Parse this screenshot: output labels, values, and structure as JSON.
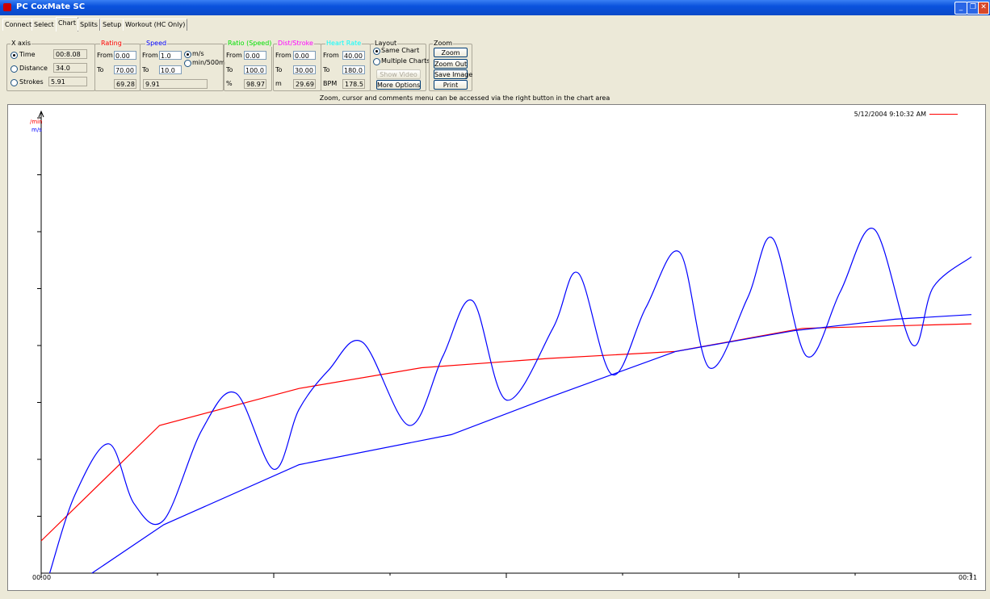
{
  "window": {
    "title": "PC CoxMate SC"
  },
  "tabs": [
    "Connect",
    "Select",
    "Chart",
    "Splits",
    "Setup",
    "Workout (HC Only)"
  ],
  "xaxis": {
    "title": "X axis",
    "options": [
      {
        "label": "Time",
        "value": "00:8.08",
        "selected": true
      },
      {
        "label": "Distance",
        "value": "34.0",
        "selected": false
      },
      {
        "label": "Strokes",
        "value": "5.91",
        "selected": false
      }
    ]
  },
  "rating": {
    "title": "Rating",
    "color": "#ff0000",
    "from_label": "From",
    "from": "0.00",
    "to_label": "To",
    "to": "70.00",
    "value": "69.28"
  },
  "speed": {
    "title": "Speed",
    "color": "#0000ff",
    "from_label": "From",
    "from": "1.0",
    "to_label": "To",
    "to": "10.0",
    "value": "9.91",
    "unit_ms": "m/s",
    "unit_split": "min/500m",
    "ms_selected": true
  },
  "ratio": {
    "title": "Ratio (Speed)",
    "color": "#00e000",
    "from_label": "From",
    "from": "0.00",
    "to_label": "To",
    "to": "100.0",
    "unit": "%",
    "value": "98.97"
  },
  "diststroke": {
    "title": "Dist/Stroke",
    "color": "#ff00ff",
    "from_label": "From",
    "from": "0.00",
    "to_label": "To",
    "to": "30.00",
    "unit": "m",
    "value": "29.69"
  },
  "heartrate": {
    "title": "Heart Rate",
    "color": "#00ffff",
    "from_label": "From",
    "from": "40.00",
    "to_label": "To",
    "to": "180.0",
    "unit": "BPM",
    "value": "178.5"
  },
  "layout": {
    "title": "Layout",
    "same_chart": "Same Chart",
    "multiple_charts": "Multiple Charts",
    "same_selected": true,
    "show_video": "Show Video",
    "more_options": "More Options"
  },
  "zoom": {
    "title": "Zoom",
    "zoom": "Zoom",
    "zoom_out": "Zoom Out",
    "save_image": "Save Image",
    "print": "Print"
  },
  "hint": "Zoom, cursor and comments menu can be accessed via the right button in the chart area",
  "chart": {
    "y_label_rating": "/min",
    "y_label_speed": "m/s",
    "timestamp": "5/12/2004 9:10:32 AM",
    "x_start": "00:00",
    "x_end": "00:11"
  },
  "chart_data": {
    "type": "line",
    "xlabel": "",
    "ylabel": "",
    "xlim": [
      0,
      11
    ],
    "series": [
      {
        "color": "#ff0000",
        "x": [
          0,
          1.4,
          3.05,
          4.5,
          6.0,
          7.5,
          9.0,
          11
        ],
        "y": [
          0.07,
          0.32,
          0.4,
          0.445,
          0.465,
          0.48,
          0.53,
          0.54
        ]
      },
      {
        "color": "#0000ff",
        "x": [
          0.6,
          1.45,
          3.05,
          4.85,
          6.0,
          7.5,
          8.9,
          10.1,
          11
        ],
        "y": [
          0.0,
          0.105,
          0.235,
          0.3,
          0.38,
          0.48,
          0.525,
          0.55,
          0.56
        ]
      },
      {
        "color": "#0000ff",
        "x": [
          0.1,
          0.4,
          0.8,
          1.1,
          1.45,
          1.9,
          2.3,
          2.75,
          3.05,
          3.4,
          3.8,
          4.35,
          4.75,
          5.1,
          5.5,
          6.05,
          6.35,
          6.75,
          7.15,
          7.55,
          7.9,
          8.35,
          8.65,
          9.05,
          9.45,
          9.85,
          10.3,
          10.55,
          11
        ],
        "y": [
          0.0,
          0.17,
          0.28,
          0.15,
          0.115,
          0.31,
          0.39,
          0.225,
          0.355,
          0.44,
          0.5,
          0.32,
          0.47,
          0.59,
          0.375,
          0.53,
          0.65,
          0.43,
          0.575,
          0.695,
          0.445,
          0.595,
          0.725,
          0.47,
          0.61,
          0.745,
          0.495,
          0.62,
          0.685
        ]
      }
    ]
  }
}
